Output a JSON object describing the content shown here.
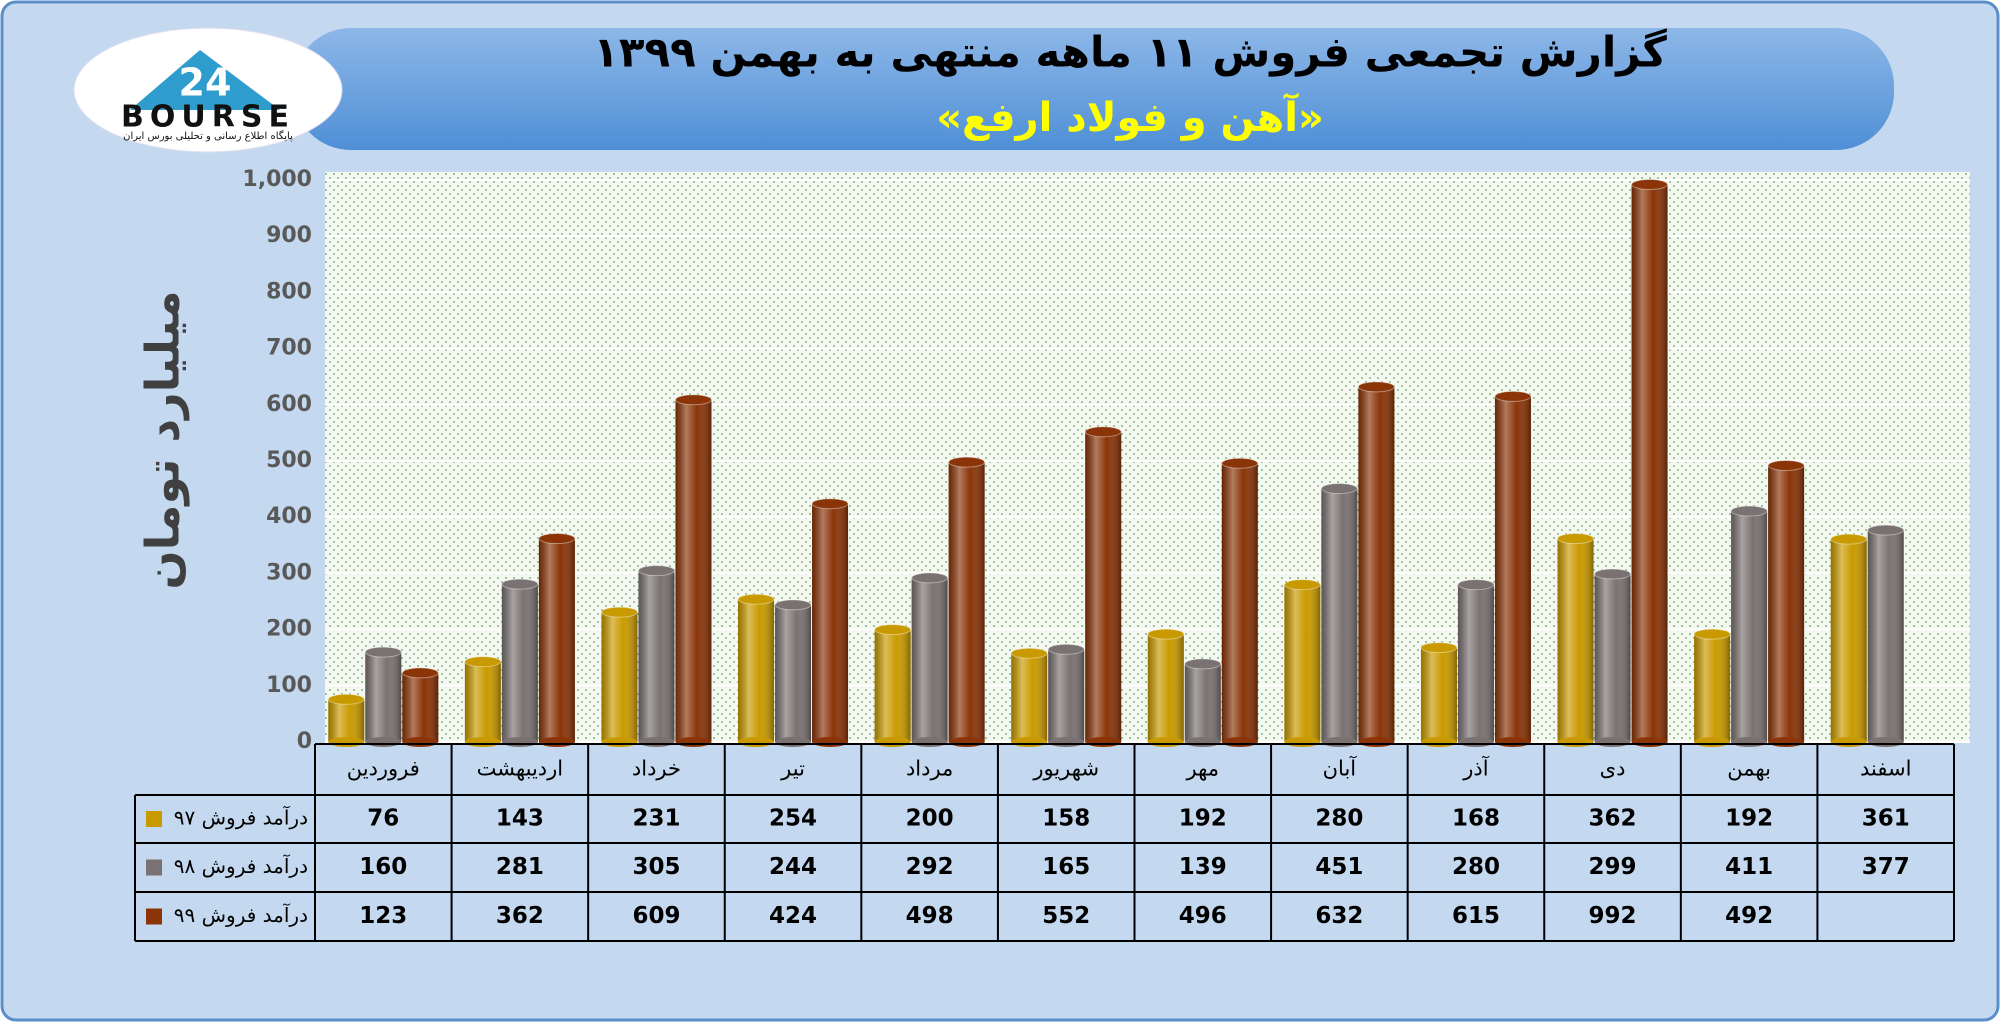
{
  "logo": {
    "number": "24",
    "name": "BOURSE",
    "tagline": "پایگاه اطلاع رسانی و تحلیلی بورس ایران"
  },
  "chart_data": {
    "type": "bar",
    "title": "گزارش تجمعی فروش ۱۱ ماهه منتهی به بهمن ۱۳۹۹",
    "subtitle": "«آهن و فولاد ارفع»",
    "y_label": "میلیارد تومان",
    "categories": [
      "فروردین",
      "اردیبهشت",
      "خرداد",
      "تیر",
      "مرداد",
      "شهریور",
      "مهر",
      "آبان",
      "آذر",
      "دی",
      "بهمن",
      "اسفند"
    ],
    "series": [
      {
        "name": "درآمد فروش ۹۷",
        "color": "#c99a00",
        "values": [
          76,
          143,
          231,
          254,
          200,
          158,
          192,
          280,
          168,
          362,
          192,
          361
        ]
      },
      {
        "name": "درآمد فروش ۹۸",
        "color": "#7a7272",
        "values": [
          160,
          281,
          305,
          244,
          292,
          165,
          139,
          451,
          280,
          299,
          411,
          377
        ]
      },
      {
        "name": "درآمد فروش ۹۹",
        "color": "#8a3408",
        "values": [
          123,
          362,
          609,
          424,
          498,
          552,
          496,
          632,
          615,
          992,
          492,
          null
        ]
      }
    ],
    "ylim": [
      0,
      1000
    ],
    "yticks": [
      0,
      100,
      200,
      300,
      400,
      500,
      600,
      700,
      800,
      900,
      {
        "value": 1000,
        "label": "1,000"
      }
    ],
    "grid": true
  }
}
